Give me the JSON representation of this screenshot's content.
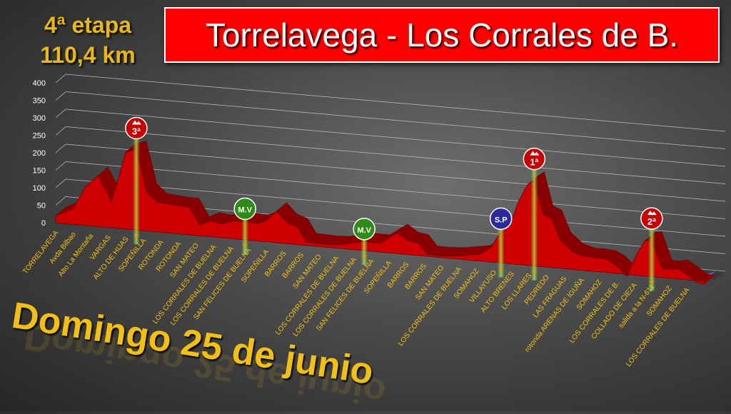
{
  "stage": {
    "number": "4ª etapa",
    "distance": "110,4 km"
  },
  "title": "Torrelavega - Los Corrales de B.",
  "date": "Domingo 25 de junio",
  "colors": {
    "profile": "#cc0000",
    "profile_top": "#8a0000",
    "title_bg": "#ff0000",
    "label": "#f2c014",
    "stage_text": "#e8b81a"
  },
  "chart_data": {
    "type": "area",
    "ylim": [
      0,
      400
    ],
    "yticks": [
      0,
      50,
      100,
      150,
      200,
      250,
      300,
      350,
      400
    ],
    "grid": true,
    "categories": [
      "TORRELAVEGA",
      "Avda Bilbao",
      "Alto La Montaña",
      "VARGAS",
      "ALTO DE HIJAS",
      "SOPEÑILLA",
      "ROTONDA",
      "ROTONDA",
      "SAN MATEO",
      "LOS CORRALES DE BUELNA",
      "LOS CORRALES DE BUELNA",
      "SAN FELICES DE BUELNA",
      "SOPEÑILLA",
      "BARROS",
      "BARROS",
      "SAN MATEO",
      "LOS CORRALES DE BUELNA",
      "LOS CORRALES DE BUELNA",
      "SAN FELICES DE BUELNA",
      "SOPEÑILLA",
      "BARROS",
      "BARROS",
      "SAN MATEO",
      "LOS CORRALES DE BUELNA",
      "SOMAHOZ",
      "VILLAYUSO",
      "ALTO BRENES",
      "LOS LLARES",
      "PEDREDO",
      "LAS FRAGUAS",
      "rotonda ARENAS DE IGUÑA",
      "SOMAHOZ",
      "LOS CORRALES DE B.",
      "COLLADO DE CIEZA",
      "salida a la N-611",
      "SOMAHOZ",
      "LOS CORRALES DE BUELNA"
    ],
    "profile": [
      [
        0,
        20
      ],
      [
        1,
        45
      ],
      [
        1.7,
        110
      ],
      [
        2.4,
        145
      ],
      [
        3.2,
        75
      ],
      [
        4,
        220
      ],
      [
        4.6,
        230
      ],
      [
        5.2,
        110
      ],
      [
        5.8,
        85
      ],
      [
        7,
        80
      ],
      [
        7.6,
        80
      ],
      [
        8.2,
        30
      ],
      [
        8.8,
        45
      ],
      [
        9.4,
        40
      ],
      [
        10.2,
        50
      ],
      [
        10.8,
        52
      ],
      [
        11.5,
        50
      ],
      [
        12,
        60
      ],
      [
        12.6,
        90
      ],
      [
        13.2,
        60
      ],
      [
        13.8,
        50
      ],
      [
        14.3,
        10
      ],
      [
        15.5,
        8
      ],
      [
        16.2,
        10
      ],
      [
        17,
        20
      ],
      [
        17.6,
        25
      ],
      [
        18.5,
        25
      ],
      [
        19.5,
        60
      ],
      [
        20.1,
        40
      ],
      [
        20.7,
        35
      ],
      [
        21.2,
        5
      ],
      [
        22,
        5
      ],
      [
        22.8,
        8
      ],
      [
        23.6,
        15
      ],
      [
        24.2,
        20
      ],
      [
        24.8,
        40
      ],
      [
        25.4,
        90
      ],
      [
        25.9,
        110
      ],
      [
        26.4,
        180
      ],
      [
        26.9,
        230
      ],
      [
        27.3,
        245
      ],
      [
        27.8,
        150
      ],
      [
        28.3,
        140
      ],
      [
        28.8,
        80
      ],
      [
        29.5,
        50
      ],
      [
        30.2,
        40
      ],
      [
        30.8,
        40
      ],
      [
        31.4,
        38
      ],
      [
        31.9,
        25
      ],
      [
        32.6,
        -5
      ],
      [
        33.1,
        55
      ],
      [
        33.6,
        100
      ],
      [
        34,
        105
      ],
      [
        34.6,
        25
      ],
      [
        35,
        25
      ],
      [
        35.5,
        30
      ],
      [
        36,
        15
      ],
      [
        36.6,
        -5
      ],
      [
        37,
        -8
      ]
    ],
    "markers": [
      {
        "label": "3ª",
        "type": "climb",
        "at": 4.6,
        "value": 230
      },
      {
        "label": "M.V",
        "type": "sprint",
        "at": 10.8,
        "value": 52
      },
      {
        "label": "M.V",
        "type": "sprint",
        "at": 17.6,
        "value": 25
      },
      {
        "label": "S.P",
        "type": "special",
        "at": 25.4,
        "value": 90
      },
      {
        "label": "1ª",
        "type": "climb",
        "at": 27.3,
        "value": 245
      },
      {
        "label": "2ª",
        "type": "climb",
        "at": 34,
        "value": 105
      }
    ],
    "marker_colors": {
      "climb": "#c40000",
      "sprint": "#2e8b17",
      "special": "#2a2a9a"
    }
  }
}
